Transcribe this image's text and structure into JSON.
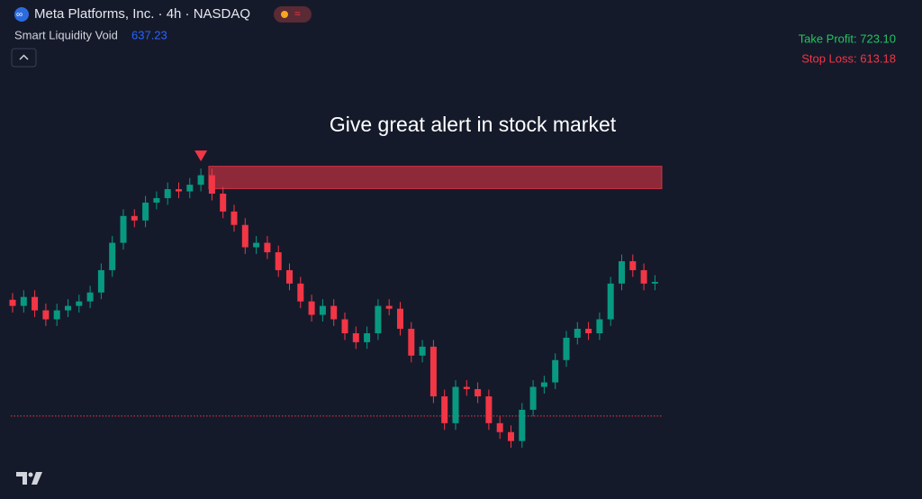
{
  "chart_data": {
    "type": "candlestick",
    "symbol": "Meta Platforms, Inc. · 4h · NASDAQ",
    "indicator": "Smart Liquidity Void",
    "indicator_value": 637.23,
    "title": "Give great alert in stock market",
    "take_profit": "Take Profit: 723.10",
    "stop_loss": {
      "value": 613.18,
      "label": "Stop Loss: 613.18"
    },
    "void_zone": {
      "low": 653.9,
      "high": 657.9
    },
    "up_color": "#089981",
    "down_color": "#f23645",
    "ylim": [
      598,
      668
    ],
    "open": [
      634.0,
      632.9,
      634.5,
      632.1,
      630.5,
      632.1,
      632.9,
      633.7,
      635.3,
      639.3,
      644.2,
      649.0,
      648.2,
      651.4,
      652.2,
      653.8,
      653.4,
      654.6,
      656.3,
      653.0,
      649.8,
      647.4,
      643.4,
      644.2,
      642.5,
      639.3,
      636.9,
      633.7,
      631.3,
      632.9,
      630.5,
      628.0,
      626.4,
      628.0,
      632.9,
      632.4,
      628.8,
      624.0,
      625.6,
      616.7,
      611.9,
      618.4,
      618.0,
      616.7,
      611.9,
      610.3,
      608.7,
      614.3,
      618.4,
      619.2,
      623.2,
      627.2,
      628.8,
      628.0,
      630.5,
      636.9,
      640.9,
      639.3,
      636.9
    ],
    "high": [
      635.2,
      635.7,
      635.7,
      633.3,
      633.3,
      634.1,
      634.9,
      636.5,
      640.5,
      645.4,
      650.2,
      650.2,
      652.6,
      653.4,
      655.0,
      655.0,
      655.8,
      657.5,
      657.5,
      654.2,
      651.0,
      648.6,
      645.4,
      645.4,
      643.7,
      640.5,
      638.1,
      634.9,
      634.1,
      634.1,
      631.7,
      629.2,
      629.2,
      634.1,
      634.1,
      633.6,
      630.0,
      626.8,
      626.8,
      617.9,
      619.6,
      619.6,
      619.2,
      617.9,
      613.1,
      611.5,
      615.5,
      619.6,
      620.4,
      624.4,
      628.4,
      630.0,
      630.0,
      631.7,
      638.1,
      642.1,
      642.1,
      640.5,
      638.4
    ],
    "low": [
      631.7,
      631.7,
      630.9,
      629.3,
      629.3,
      630.9,
      631.7,
      632.5,
      634.1,
      638.1,
      643.0,
      647.0,
      647.0,
      650.2,
      651.0,
      652.2,
      652.2,
      653.4,
      651.8,
      648.6,
      646.2,
      642.2,
      642.2,
      641.3,
      638.1,
      635.7,
      632.5,
      630.1,
      630.1,
      629.3,
      626.8,
      625.2,
      625.2,
      626.8,
      631.2,
      627.6,
      622.8,
      622.8,
      615.5,
      610.7,
      610.7,
      616.8,
      615.5,
      610.7,
      609.1,
      607.5,
      607.5,
      613.1,
      617.2,
      618.0,
      622.0,
      626.0,
      626.8,
      626.8,
      629.3,
      635.7,
      638.1,
      635.7,
      635.7
    ],
    "close": [
      632.9,
      634.5,
      632.1,
      630.5,
      632.1,
      632.9,
      633.7,
      635.3,
      639.3,
      644.2,
      649.0,
      648.2,
      651.4,
      652.2,
      653.8,
      653.4,
      654.6,
      656.3,
      653.0,
      649.8,
      647.4,
      643.4,
      644.2,
      642.5,
      639.3,
      636.9,
      633.7,
      631.3,
      632.9,
      630.5,
      628.0,
      626.4,
      628.0,
      632.9,
      632.4,
      628.8,
      624.0,
      625.6,
      616.7,
      611.9,
      618.4,
      618.0,
      616.7,
      611.9,
      610.3,
      608.7,
      614.3,
      618.4,
      619.2,
      623.2,
      627.2,
      628.8,
      628.0,
      630.5,
      636.9,
      640.9,
      639.3,
      636.9,
      637.2
    ]
  }
}
